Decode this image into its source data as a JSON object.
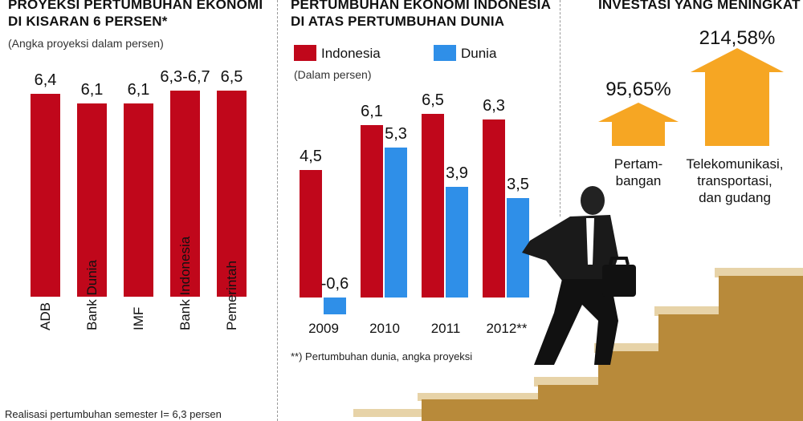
{
  "colors": {
    "indonesia": "#c0071b",
    "dunia": "#2f8fe8",
    "arrow": "#f6a623",
    "stairs": "#b88a3a",
    "stairsLight": "#e7d3a8"
  },
  "panel1": {
    "title_l1": "PROYEKSI PERTUMBUHAN EKONOMI",
    "title_l2": "DI KISARAN 6 PERSEN*",
    "subtitle": "(Angka proyeksi dalam persen)",
    "footnote": "Realisasi pertumbuhan semester I= 6,3 persen"
  },
  "panel2": {
    "title_l1": "PERTUMBUHAN EKONOMI INDONESIA",
    "title_l2": "DI ATAS PERTUMBUHAN DUNIA",
    "legend_indonesia": "Indonesia",
    "legend_dunia": "Dunia",
    "unit": "(Dalam persen)",
    "footnote": "**) Pertumbuhan dunia, angka proyeksi"
  },
  "panel3": {
    "title": "INVESTASI YANG MENINGKAT",
    "items": [
      {
        "value": "95,65%",
        "num": 95.65,
        "label_l1": "Pertam-",
        "label_l2": "bangan",
        "label_l3": ""
      },
      {
        "value": "214,58%",
        "num": 214.58,
        "label_l1": "Telekomunikasi,",
        "label_l2": "transportasi,",
        "label_l3": "dan gudang"
      }
    ]
  },
  "chart_data": [
    {
      "type": "bar",
      "title": "PROYEKSI PERTUMBUHAN EKONOMI DI KISARAN 6 PERSEN*",
      "ylabel": "(Angka proyeksi dalam persen)",
      "categories": [
        "ADB",
        "Bank Dunia",
        "IMF",
        "Bank Indonesia",
        "Pemerintah"
      ],
      "values": [
        6.4,
        6.1,
        6.1,
        6.5,
        6.5
      ],
      "value_labels": [
        "6,4",
        "6,1",
        "6,1",
        "6,3-6,7",
        "6,5"
      ],
      "ylim": [
        0,
        7
      ],
      "grid": false
    },
    {
      "type": "bar",
      "title": "PERTUMBUHAN EKONOMI INDONESIA DI ATAS PERTUMBUHAN DUNIA",
      "categories": [
        "2009",
        "2010",
        "2011",
        "2012**"
      ],
      "series": [
        {
          "name": "Indonesia",
          "values": [
            4.5,
            6.1,
            6.5,
            6.3
          ],
          "labels": [
            "4,5",
            "6,1",
            "6,5",
            "6,3"
          ]
        },
        {
          "name": "Dunia",
          "values": [
            -0.6,
            5.3,
            3.9,
            3.5
          ],
          "labels": [
            "-0,6",
            "5,3",
            "3,9",
            "3,5"
          ]
        }
      ],
      "ylim": [
        -0.6,
        7
      ],
      "legend": "top",
      "grid": false
    }
  ]
}
